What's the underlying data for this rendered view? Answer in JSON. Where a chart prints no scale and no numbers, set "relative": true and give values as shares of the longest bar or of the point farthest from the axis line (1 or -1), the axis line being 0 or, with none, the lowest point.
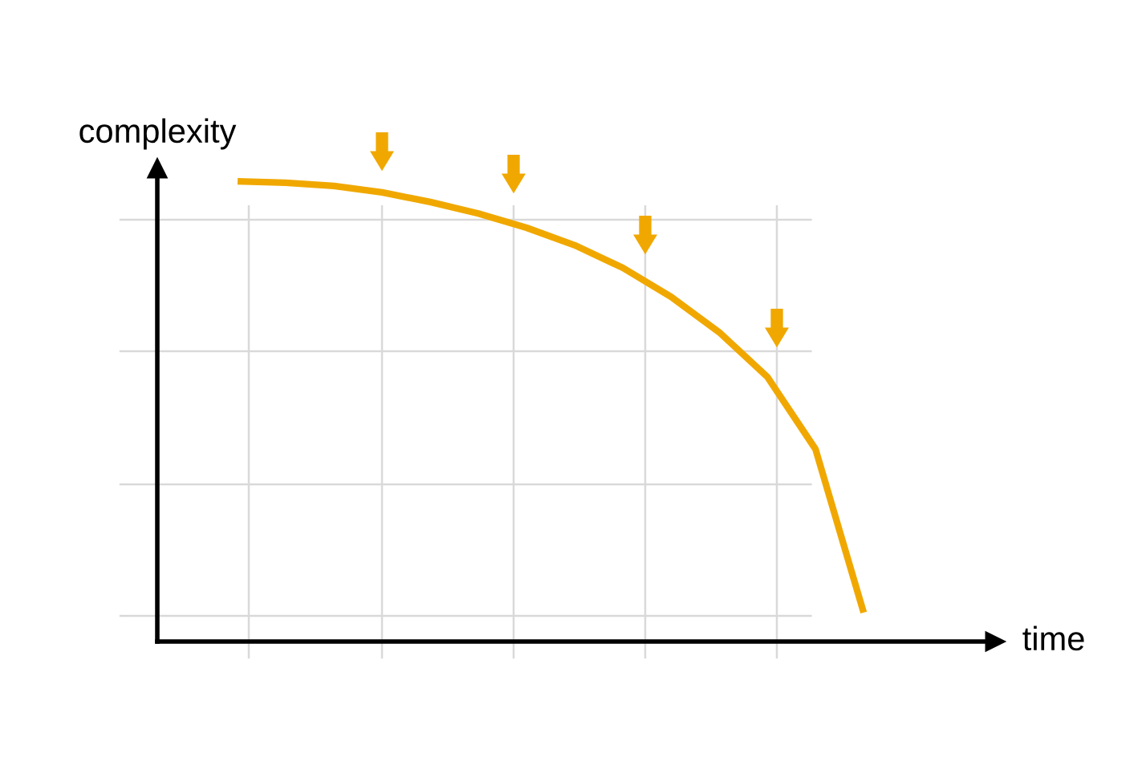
{
  "chart_data": {
    "type": "line",
    "relative": true,
    "xlabel": "time",
    "ylabel": "complexity",
    "categories": [
      null,
      null,
      null,
      null,
      null,
      null,
      null,
      null,
      null,
      null,
      null,
      null,
      null,
      null
    ],
    "series": [
      {
        "color": "#f0a800",
        "values": [
          1.0,
          0.997,
          0.99,
          0.976,
          0.955,
          0.93,
          0.899,
          0.861,
          0.812,
          0.749,
          0.672,
          0.575,
          0.418,
          0.063
        ]
      }
    ],
    "grid": true,
    "marker": "none",
    "line_style": "solid",
    "legend": false
  }
}
